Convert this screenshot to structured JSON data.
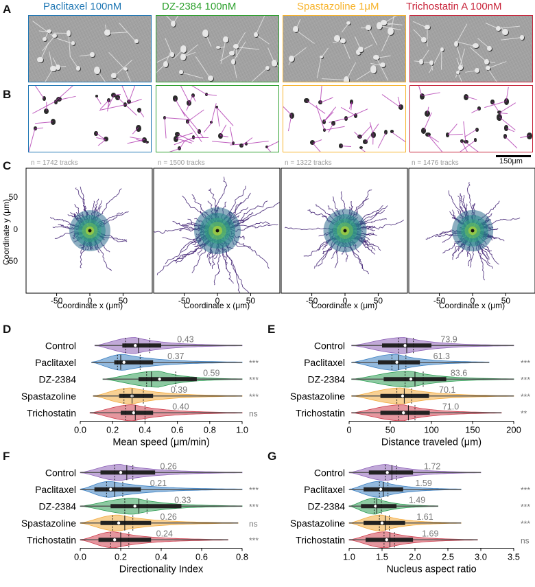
{
  "panel_letters": {
    "a": "A",
    "b": "B",
    "c": "C",
    "d": "D",
    "e": "E",
    "f": "F",
    "g": "G"
  },
  "conditions": [
    {
      "label": "Paclitaxel 100nM",
      "color": "#1f77b4"
    },
    {
      "label": "DZ-2384 100nM",
      "color": "#2ca02c"
    },
    {
      "label": "Spastazoline 1μM",
      "color": "#f7b32b"
    },
    {
      "label": "Trichostatin A 100nM",
      "color": "#c8243a"
    }
  ],
  "scale_bar": {
    "label": "150μm"
  },
  "tracks": {
    "notes": [
      "n = 1742 tracks",
      "n = 1500 tracks",
      "n = 1322 tracks",
      "n = 1476 tracks"
    ],
    "x_label": "Coordinate x (μm)",
    "y_label": "Coordinate y (μm)",
    "ticks": [
      "-50",
      "0",
      "50"
    ]
  },
  "chart_data": [
    {
      "type": "violin",
      "panel": "D",
      "xlabel": "Mean speed (μm/min)",
      "xlim": [
        0,
        1.0
      ],
      "xticks": [
        0,
        0.2,
        0.4,
        0.6,
        0.8,
        1.0
      ],
      "xtick_labels": [
        "0.0",
        "0.2",
        "0.4",
        "0.6",
        "0.8",
        "1.0"
      ],
      "categories": [
        "Control",
        "Paclitaxel",
        "DZ-2384",
        "Spastazoline",
        "Trichostatin"
      ],
      "colors": [
        "#8e63b8",
        "#3a7fc1",
        "#2e9c54",
        "#f2a93b",
        "#cf3f4f"
      ],
      "series": [
        {
          "name": "Control",
          "median": 0.34,
          "q1": 0.26,
          "q3": 0.5,
          "whisker": [
            0.09,
            1.0
          ],
          "mean_line": 0.36,
          "dash": [
            0.28,
            0.43
          ],
          "mean_label": "0.43",
          "sig": ""
        },
        {
          "name": "Paclitaxel",
          "median": 0.27,
          "q1": 0.21,
          "q3": 0.45,
          "whisker": [
            0.07,
            1.0
          ],
          "mean_line": 0.25,
          "dash": [
            0.23,
            0.37
          ],
          "mean_label": "0.37",
          "sig": "***"
        },
        {
          "name": "DZ-2384",
          "median": 0.49,
          "q1": 0.36,
          "q3": 0.72,
          "whisker": [
            0.14,
            1.0
          ],
          "mean_line": 0.44,
          "dash": [
            0.41,
            0.59
          ],
          "mean_label": "0.59",
          "sig": "***"
        },
        {
          "name": "Spastazoline",
          "median": 0.32,
          "q1": 0.24,
          "q3": 0.45,
          "whisker": [
            0.08,
            1.0
          ],
          "mean_line": 0.32,
          "dash": [
            0.27,
            0.39
          ],
          "mean_label": "0.39",
          "sig": "***"
        },
        {
          "name": "Trichostatin",
          "median": 0.33,
          "q1": 0.25,
          "q3": 0.45,
          "whisker": [
            0.06,
            1.0
          ],
          "mean_line": 0.34,
          "dash": [
            0.28,
            0.4
          ],
          "mean_label": "0.40",
          "sig": "ns"
        }
      ]
    },
    {
      "type": "violin",
      "panel": "E",
      "xlabel": "Distance traveled (μm)",
      "xlim": [
        0,
        200
      ],
      "xticks": [
        0,
        50,
        100,
        150,
        200
      ],
      "xtick_labels": [
        "0",
        "50",
        "100",
        "150",
        "200"
      ],
      "categories": [
        "Control",
        "Paclitaxel",
        "DZ-2384",
        "Spastazoline",
        "Trichostatin"
      ],
      "colors": [
        "#8e63b8",
        "#3a7fc1",
        "#2e9c54",
        "#f2a93b",
        "#cf3f4f"
      ],
      "series": [
        {
          "name": "Control",
          "median": 68,
          "q1": 40,
          "q3": 100,
          "whisker": [
            3,
            200
          ],
          "mean_line": 70,
          "dash": [
            60,
            78
          ],
          "mean_label": "73.9",
          "sig": ""
        },
        {
          "name": "Paclitaxel",
          "median": 58,
          "q1": 35,
          "q3": 86,
          "whisker": [
            3,
            170
          ],
          "mean_line": 60,
          "dash": [
            52,
            69
          ],
          "mean_label": "61.3",
          "sig": "***"
        },
        {
          "name": "DZ-2384",
          "median": 75,
          "q1": 42,
          "q3": 118,
          "whisker": [
            3,
            200
          ],
          "mean_line": 80,
          "dash": [
            68,
            90
          ],
          "mean_label": "83.6",
          "sig": "***"
        },
        {
          "name": "Spastazoline",
          "median": 65,
          "q1": 38,
          "q3": 97,
          "whisker": [
            3,
            200
          ],
          "mean_line": 67,
          "dash": [
            58,
            76
          ],
          "mean_label": "70.1",
          "sig": "***"
        },
        {
          "name": "Trichostatin",
          "median": 66,
          "q1": 38,
          "q3": 98,
          "whisker": [
            3,
            185
          ],
          "mean_line": 72,
          "dash": [
            60,
            80
          ],
          "mean_label": "71.0",
          "sig": "**"
        }
      ]
    },
    {
      "type": "violin",
      "panel": "F",
      "xlabel": "Directionality Index",
      "xlim": [
        0,
        0.8
      ],
      "xticks": [
        0,
        0.2,
        0.4,
        0.6,
        0.8
      ],
      "xtick_labels": [
        "0.0",
        "0.2",
        "0.4",
        "0.6",
        "0.8"
      ],
      "categories": [
        "Control",
        "Paclitaxel",
        "DZ-2384",
        "Spastazoline",
        "Trichostatin"
      ],
      "colors": [
        "#8e63b8",
        "#3a7fc1",
        "#2e9c54",
        "#f2a93b",
        "#cf3f4f"
      ],
      "series": [
        {
          "name": "Control",
          "median": 0.2,
          "q1": 0.1,
          "q3": 0.37,
          "whisker": [
            0.0,
            0.8
          ],
          "mean_line": 0.23,
          "dash": [
            0.17,
            0.26
          ],
          "mean_label": "0.26",
          "sig": ""
        },
        {
          "name": "Paclitaxel",
          "median": 0.15,
          "q1": 0.07,
          "q3": 0.3,
          "whisker": [
            0.0,
            0.8
          ],
          "mean_line": 0.17,
          "dash": [
            0.13,
            0.21
          ],
          "mean_label": "0.21",
          "sig": "***"
        },
        {
          "name": "DZ-2384",
          "median": 0.27,
          "q1": 0.15,
          "q3": 0.5,
          "whisker": [
            0.0,
            0.8
          ],
          "mean_line": 0.29,
          "dash": [
            0.22,
            0.33
          ],
          "mean_label": "0.33",
          "sig": "***"
        },
        {
          "name": "Spastazoline",
          "median": 0.19,
          "q1": 0.1,
          "q3": 0.35,
          "whisker": [
            0.0,
            0.78
          ],
          "mean_line": 0.22,
          "dash": [
            0.16,
            0.26
          ],
          "mean_label": "0.26",
          "sig": "ns"
        },
        {
          "name": "Trichostatin",
          "median": 0.17,
          "q1": 0.09,
          "q3": 0.35,
          "whisker": [
            0.0,
            0.73
          ],
          "mean_line": 0.2,
          "dash": [
            0.15,
            0.24
          ],
          "mean_label": "0.24",
          "sig": "***"
        }
      ]
    },
    {
      "type": "violin",
      "panel": "G",
      "xlabel": "Nucleus aspect ratio",
      "xlim": [
        1.0,
        3.5
      ],
      "xticks": [
        1.0,
        1.5,
        2.0,
        2.5,
        3.0,
        3.5
      ],
      "xtick_labels": [
        "1.0",
        "1.5",
        "2.0",
        "2.5",
        "3.0",
        "3.5"
      ],
      "categories": [
        "Control",
        "Paclitaxel",
        "DZ-2384",
        "Spastazoline",
        "Trichostatin"
      ],
      "colors": [
        "#8e63b8",
        "#3a7fc1",
        "#2e9c54",
        "#f2a93b",
        "#cf3f4f"
      ],
      "series": [
        {
          "name": "Control",
          "median": 1.58,
          "q1": 1.3,
          "q3": 1.97,
          "whisker": [
            1.0,
            3.0
          ],
          "mean_line": 1.65,
          "dash": [
            1.55,
            1.72
          ],
          "mean_label": "1.72",
          "sig": ""
        },
        {
          "name": "Paclitaxel",
          "median": 1.48,
          "q1": 1.22,
          "q3": 1.82,
          "whisker": [
            1.0,
            2.7
          ],
          "mean_line": 1.52,
          "dash": [
            1.46,
            1.59
          ],
          "mean_label": "1.59",
          "sig": "***"
        },
        {
          "name": "DZ-2384",
          "median": 1.4,
          "q1": 1.18,
          "q3": 1.72,
          "whisker": [
            1.0,
            2.35
          ],
          "mean_line": 1.42,
          "dash": [
            1.38,
            1.49
          ],
          "mean_label": "1.49",
          "sig": "***"
        },
        {
          "name": "Spastazoline",
          "median": 1.5,
          "q1": 1.22,
          "q3": 1.85,
          "whisker": [
            1.0,
            2.7
          ],
          "mean_line": 1.55,
          "dash": [
            1.46,
            1.61
          ],
          "mean_label": "1.61",
          "sig": "***"
        },
        {
          "name": "Trichostatin",
          "median": 1.57,
          "q1": 1.25,
          "q3": 1.97,
          "whisker": [
            1.0,
            2.95
          ],
          "mean_line": 1.62,
          "dash": [
            1.53,
            1.69
          ],
          "mean_label": "1.69",
          "sig": "ns"
        }
      ]
    }
  ]
}
